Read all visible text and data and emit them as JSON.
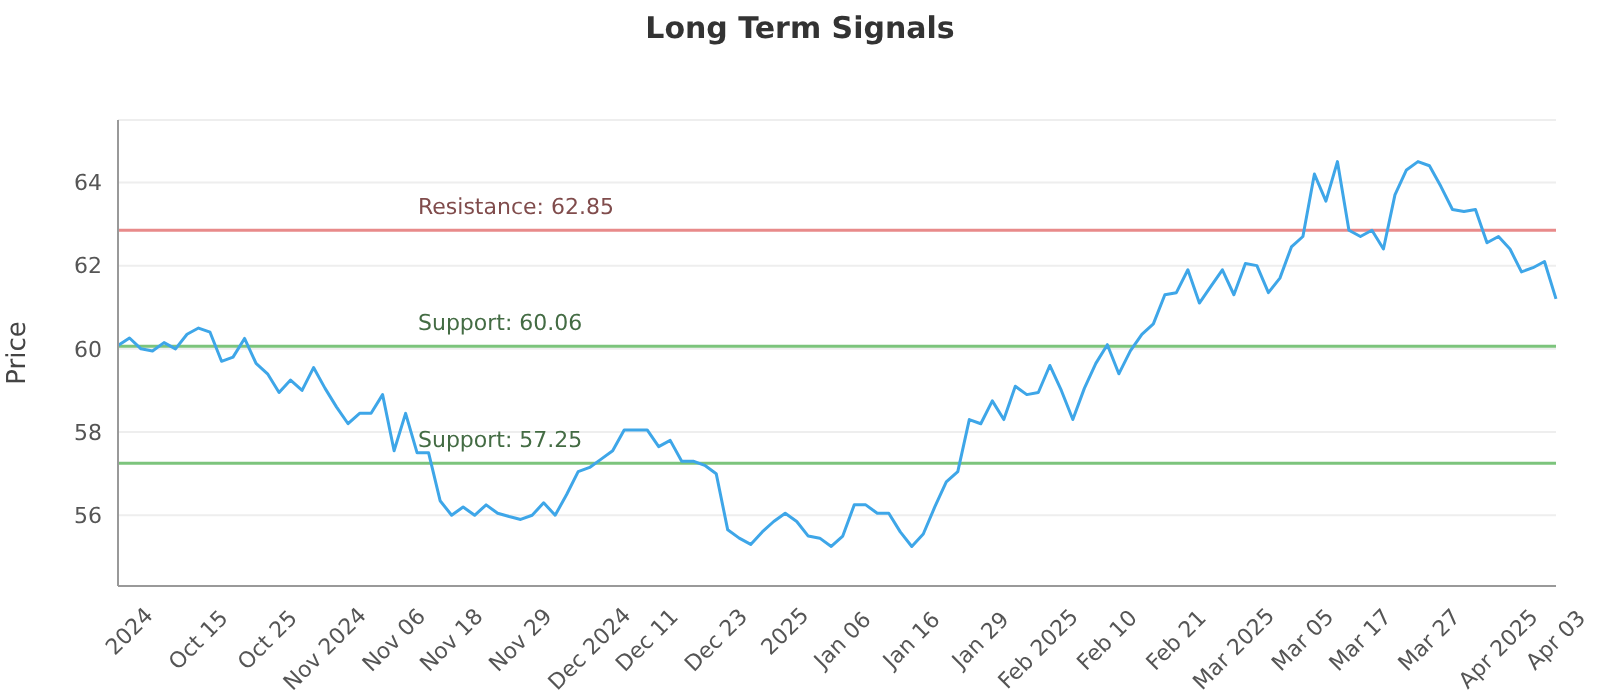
{
  "chart_data": {
    "type": "line",
    "title": "Long Term Signals",
    "ylabel": "Price",
    "categories": [
      null,
      "2024",
      null,
      null,
      null,
      null,
      null,
      "Oct 15",
      null,
      null,
      null,
      null,
      null,
      "Oct 25",
      null,
      null,
      null,
      null,
      "Nov 2024",
      null,
      null,
      null,
      null,
      null,
      "Nov 06",
      null,
      null,
      null,
      null,
      "Nov 18",
      null,
      null,
      null,
      null,
      null,
      "Nov 29",
      null,
      null,
      null,
      null,
      null,
      "Dec 2024",
      null,
      null,
      null,
      null,
      "Dec 11",
      null,
      null,
      null,
      null,
      null,
      "Dec 23",
      null,
      null,
      null,
      null,
      null,
      "2025",
      null,
      null,
      null,
      null,
      "Jan 06",
      null,
      null,
      null,
      null,
      null,
      "Jan 16",
      null,
      null,
      null,
      null,
      null,
      "Jan 29",
      null,
      null,
      null,
      null,
      "Feb 2025",
      null,
      null,
      null,
      null,
      null,
      "Feb 10",
      null,
      null,
      null,
      null,
      null,
      "Feb 21",
      null,
      null,
      null,
      null,
      "Mar 2025",
      null,
      null,
      null,
      null,
      null,
      "Mar 05",
      null,
      null,
      null,
      null,
      "Mar 17",
      null,
      null,
      null,
      null,
      null,
      "Mar 27",
      null,
      null,
      null,
      null,
      null,
      "Apr 2025",
      null,
      null,
      null,
      null,
      "Apr 03"
    ],
    "series": [
      {
        "color": "#3ea6e8",
        "values": [
          60.08,
          60.26,
          60.0,
          59.95,
          60.15,
          60.0,
          60.35,
          60.5,
          60.4,
          59.7,
          59.8,
          60.25,
          59.65,
          59.4,
          58.95,
          59.25,
          59.0,
          59.55,
          59.05,
          58.6,
          58.2,
          58.45,
          58.45,
          58.9,
          57.55,
          58.45,
          57.5,
          57.5,
          56.35,
          56.0,
          56.2,
          56.0,
          56.25,
          56.05,
          55.97,
          55.9,
          56.0,
          56.3,
          56.0,
          56.5,
          57.05,
          57.15,
          57.35,
          57.55,
          58.05,
          58.05,
          58.05,
          57.65,
          57.8,
          57.3,
          57.3,
          57.2,
          57.0,
          55.65,
          55.45,
          55.3,
          55.6,
          55.85,
          56.05,
          55.85,
          55.5,
          55.45,
          55.25,
          55.5,
          56.25,
          56.25,
          56.05,
          56.05,
          55.6,
          55.25,
          55.55,
          56.2,
          56.8,
          57.05,
          58.3,
          58.2,
          58.75,
          58.3,
          59.1,
          58.9,
          58.95,
          59.6,
          59.0,
          58.3,
          59.05,
          59.65,
          60.1,
          59.4,
          59.95,
          60.35,
          60.6,
          61.3,
          61.35,
          61.9,
          61.1,
          61.5,
          61.9,
          61.3,
          62.05,
          62.0,
          61.35,
          61.7,
          62.45,
          62.7,
          64.2,
          63.55,
          64.5,
          62.85,
          62.7,
          62.85,
          62.4,
          63.7,
          64.3,
          64.5,
          64.4,
          63.9,
          63.35,
          63.3,
          63.35,
          62.55,
          62.7,
          62.4,
          61.85,
          61.95,
          62.1,
          61.2
        ]
      }
    ],
    "ylim": [
      54.3,
      65.5
    ],
    "yticks": [
      56,
      58,
      60,
      62,
      64
    ],
    "grid": "y",
    "legend": false,
    "marker": "none",
    "line_style": "solid",
    "ref_lines": [
      {
        "axis": "y",
        "value": 62.85,
        "label": "Resistance: 62.85",
        "color": "#e88a8a"
      },
      {
        "axis": "y",
        "value": 60.06,
        "label": "Support: 60.06",
        "color": "#7cc47c"
      },
      {
        "axis": "y",
        "value": 57.25,
        "label": "Support: 57.25",
        "color": "#7cc47c"
      }
    ]
  }
}
